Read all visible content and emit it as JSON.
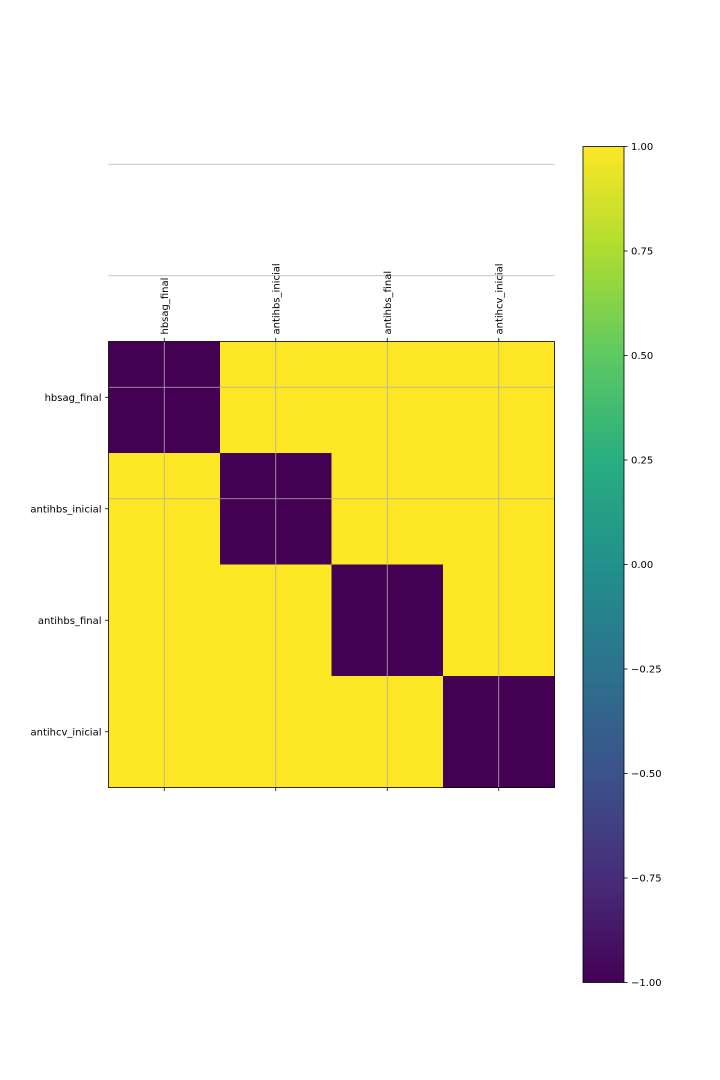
{
  "chart_data": {
    "type": "heatmap",
    "title": "",
    "xlabel": "",
    "ylabel": "",
    "x_categories": [
      "hbsag_final",
      "antihbs_inicial",
      "antihbs_final",
      "antihcv_inicial"
    ],
    "y_categories": [
      "hbsag_final",
      "antihbs_inicial",
      "antihbs_final",
      "antihcv_inicial"
    ],
    "x_tick_position": "top",
    "x_tick_rotation": "vertical",
    "values": [
      [
        -1,
        1,
        1,
        1
      ],
      [
        1,
        -1,
        1,
        1
      ],
      [
        1,
        1,
        -1,
        1
      ],
      [
        1,
        1,
        1,
        -1
      ]
    ],
    "vmin": -1,
    "vmax": 1,
    "colormap": "viridis",
    "grid": true,
    "colorbar": {
      "ticks": [
        1.0,
        0.75,
        0.5,
        0.25,
        0.0,
        -0.25,
        -0.5,
        -0.75,
        -1.0
      ],
      "tick_labels": [
        "1.00",
        "0.75",
        "0.50",
        "0.25",
        "0.00",
        "−0.25",
        "−0.50",
        "−0.75",
        "−1.00"
      ]
    },
    "colors": {
      "min": "#440154",
      "max": "#fde725"
    }
  }
}
